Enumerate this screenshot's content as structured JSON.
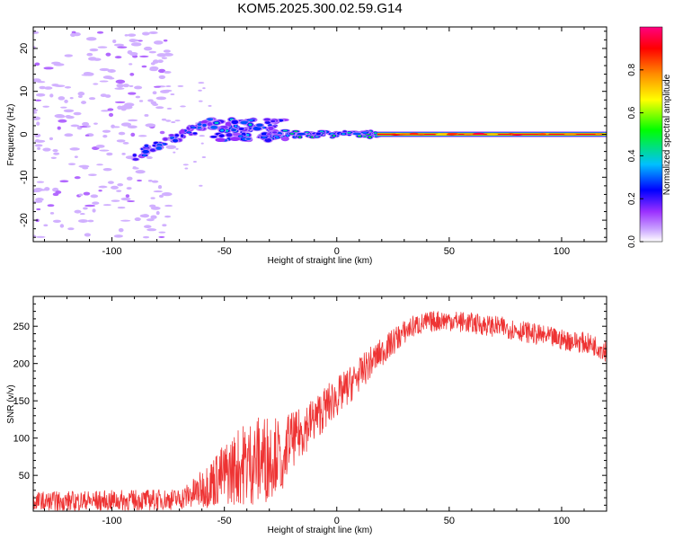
{
  "title": "KOM5.2025.300.02.59.G14",
  "chart_data": [
    {
      "type": "heatmap",
      "xlabel": "Height of straight line (km)",
      "ylabel": "Frequency (Hz)",
      "xlim": [
        -135,
        120
      ],
      "ylim": [
        -25,
        25
      ],
      "xticks": [
        -100,
        -50,
        0,
        50,
        100
      ],
      "yticks": [
        -20,
        -10,
        0,
        10,
        20
      ],
      "colorbar": {
        "label": "Normalized spectral amplitude",
        "range": [
          0,
          1
        ],
        "ticks": [
          0.0,
          0.2,
          0.4,
          0.6,
          0.8
        ],
        "tick_labels": [
          "0.0",
          "0.2",
          "0.4",
          "0.6",
          "0.8"
        ],
        "colors": [
          "#ffffff",
          "#c8a0ff",
          "#9b30ff",
          "#0000ff",
          "#00c0ff",
          "#00ff00",
          "#ffff00",
          "#ff8c00",
          "#ff0000",
          "#ff0080"
        ]
      },
      "features": [
        {
          "name": "scattered weak returns",
          "x_range": [
            -135,
            -75
          ],
          "freq_range": [
            -24,
            24
          ],
          "amplitude": 0.05
        },
        {
          "name": "rising Doppler trace",
          "x_range": [
            -90,
            -55
          ],
          "freq_start": -5,
          "freq_end": 3,
          "amplitude": 0.25
        },
        {
          "name": "diffuse cluster",
          "x_range": [
            -55,
            -22
          ],
          "freq_range": [
            -2,
            4
          ],
          "amplitude": 0.3
        },
        {
          "name": "converging trace",
          "x_range": [
            -22,
            18
          ],
          "freq": 0,
          "amplitude": 0.45
        },
        {
          "name": "stable line",
          "x_range": [
            18,
            120
          ],
          "freq": 0,
          "amplitude": 0.95
        }
      ]
    },
    {
      "type": "line",
      "xlabel": "Height of straight line (km)",
      "ylabel": "SNR (v/v)",
      "xlim": [
        -135,
        120
      ],
      "ylim": [
        2,
        290
      ],
      "xticks": [
        -100,
        -50,
        0,
        50,
        100
      ],
      "yticks": [
        50,
        100,
        150,
        200,
        250
      ],
      "series": [
        {
          "name": "SNR",
          "color": "#ee3333",
          "x": [
            -135,
            -120,
            -100,
            -85,
            -70,
            -62,
            -55,
            -48,
            -42,
            -35,
            -30,
            -26,
            -24,
            -22,
            -18,
            -14,
            -10,
            -6,
            -2,
            2,
            6,
            10,
            14,
            18,
            22,
            26,
            30,
            34,
            40,
            46,
            50,
            55,
            60,
            65,
            70,
            75,
            80,
            85,
            90,
            95,
            100,
            105,
            110,
            115,
            120
          ],
          "values": [
            14,
            15,
            16,
            17,
            18,
            28,
            42,
            55,
            65,
            70,
            75,
            82,
            45,
            95,
            100,
            115,
            125,
            138,
            150,
            160,
            172,
            185,
            198,
            210,
            220,
            232,
            242,
            250,
            255,
            258,
            258,
            256,
            254,
            252,
            250,
            248,
            245,
            242,
            238,
            235,
            232,
            230,
            228,
            224,
            218
          ],
          "noise": [
            14,
            14,
            14,
            14,
            14,
            22,
            35,
            45,
            55,
            60,
            60,
            45,
            20,
            40,
            35,
            35,
            30,
            30,
            28,
            26,
            25,
            22,
            22,
            20,
            18,
            18,
            16,
            15,
            14,
            14,
            14,
            14,
            14,
            14,
            14,
            14,
            14,
            14,
            14,
            14,
            14,
            14,
            14,
            14,
            16
          ]
        }
      ]
    }
  ]
}
